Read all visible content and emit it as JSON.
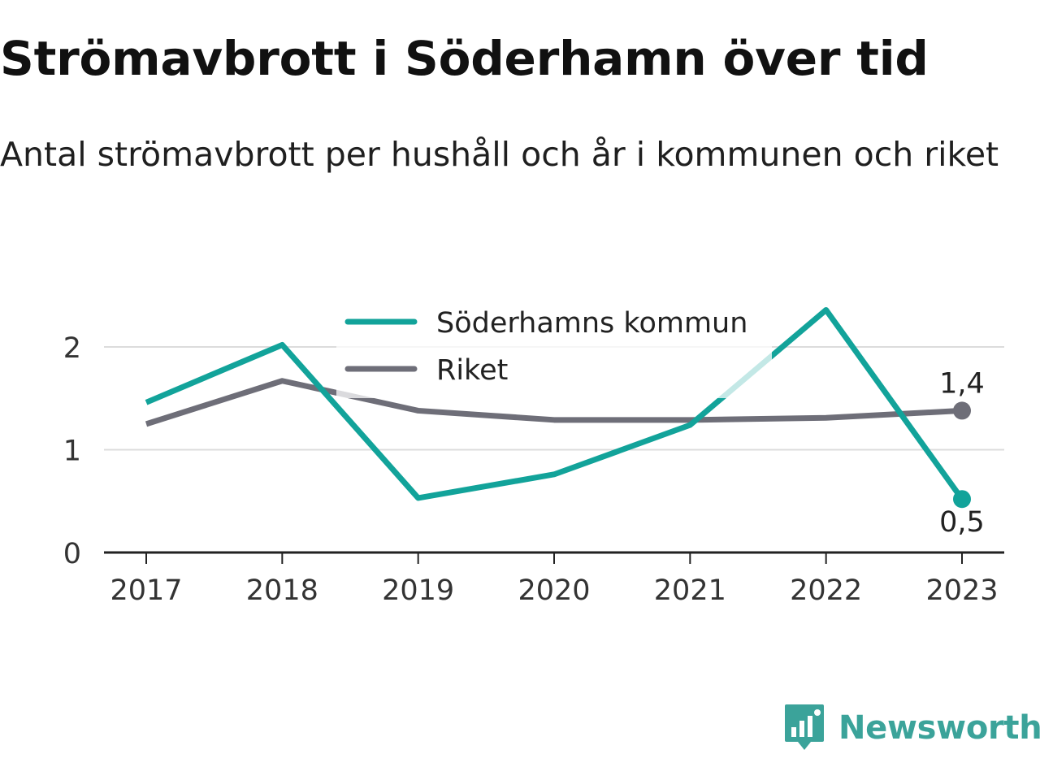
{
  "title": "Strömavbrott i Söderhamn över tid",
  "subtitle": "Antal strömavbrott per hushåll och år i kommunen och riket",
  "brand": {
    "name": "Newsworthy",
    "icon": "newsworthy-logo-icon",
    "color": "#3ba39a"
  },
  "colors": {
    "soderhamn": "#12a39a",
    "riket": "#6e6e78",
    "grid": "#dcdcdc",
    "axis": "#222222"
  },
  "chart_data": {
    "type": "line",
    "title": "Strömavbrott i Söderhamn över tid",
    "subtitle": "Antal strömavbrott per hushåll och år i kommunen och riket",
    "xlabel": "",
    "ylabel": "",
    "x": [
      "2017",
      "2018",
      "2019",
      "2020",
      "2021",
      "2022",
      "2023"
    ],
    "ylim": [
      0,
      2.6
    ],
    "yticks": [
      0,
      1,
      2
    ],
    "ytick_labels": [
      "0",
      "1",
      "2"
    ],
    "grid": true,
    "legend": "top-center",
    "series": [
      {
        "name": "Söderhamns kommun",
        "color": "#12a39a",
        "values": [
          1.46,
          2.02,
          0.53,
          0.76,
          1.24,
          2.36,
          0.52
        ],
        "end_label": "0,5"
      },
      {
        "name": "Riket",
        "color": "#6e6e78",
        "values": [
          1.25,
          1.67,
          1.38,
          1.29,
          1.29,
          1.31,
          1.38
        ],
        "end_label": "1,4"
      }
    ]
  }
}
